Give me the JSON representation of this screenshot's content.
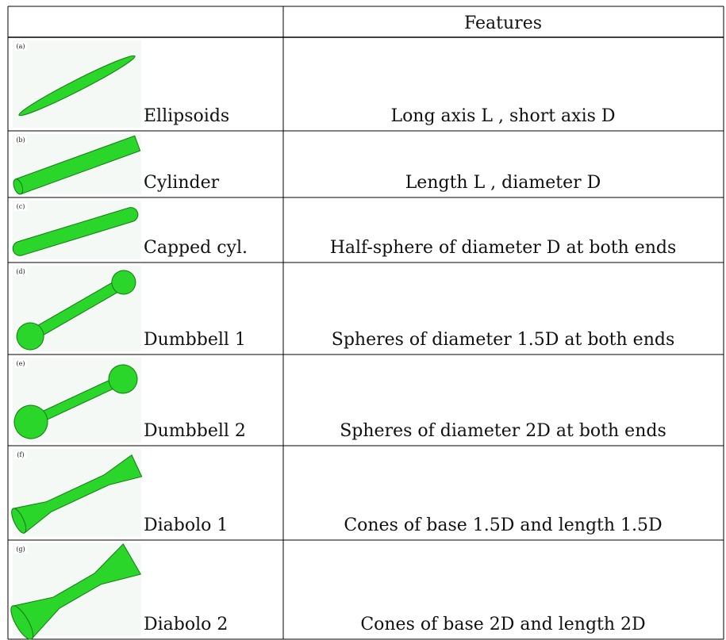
{
  "table": {
    "header": {
      "features": "Features"
    },
    "rows": [
      {
        "panel": "(a)",
        "shape": "Ellipsoids",
        "features": "Long axis L , short axis D"
      },
      {
        "panel": "(b)",
        "shape": "Cylinder",
        "features": "Length L , diameter D"
      },
      {
        "panel": "(c)",
        "shape": "Capped cyl.",
        "features": "Half-sphere of diameter D at both ends"
      },
      {
        "panel": "(d)",
        "shape": "Dumbbell 1",
        "features": "Spheres of diameter 1.5D at both ends"
      },
      {
        "panel": "(e)",
        "shape": "Dumbbell 2",
        "features": "Spheres of diameter 2D at both ends"
      },
      {
        "panel": "(f)",
        "shape": "Diabolo 1",
        "features": "Cones of base 1.5D and length 1.5D"
      },
      {
        "panel": "(g)",
        "shape": "Diabolo 2",
        "features": "Cones of base 2D and length 2D"
      }
    ]
  }
}
